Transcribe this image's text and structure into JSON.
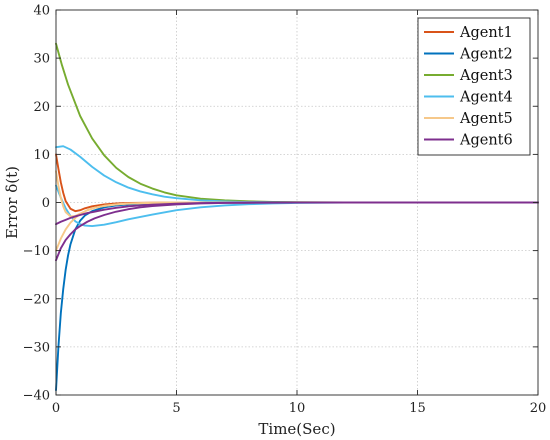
{
  "chart_data": {
    "type": "line",
    "title": "",
    "xlabel": "Time(Sec)",
    "ylabel": "Error δ(t)",
    "xlim": [
      0,
      20
    ],
    "ylim": [
      -40,
      40
    ],
    "xticks": [
      0,
      5,
      10,
      15,
      20
    ],
    "yticks": [
      -40,
      -30,
      -20,
      -10,
      0,
      10,
      20,
      30,
      40
    ],
    "xtick_labels": [
      "0",
      "5",
      "10",
      "15",
      "20"
    ],
    "ytick_labels": [
      "−40",
      "−30",
      "−20",
      "−10",
      "0",
      "10",
      "20",
      "30",
      "40"
    ],
    "grid": true,
    "legend_position": "top-right",
    "series": [
      {
        "name": "Agent1",
        "color": "#d95319",
        "x": [
          0,
          0.1,
          0.2,
          0.3,
          0.4,
          0.6,
          0.8,
          1.0,
          1.2,
          1.5,
          2.0,
          2.5,
          3.0,
          4.0,
          5.0,
          6.0,
          8.0,
          10.0,
          20.0
        ],
        "y": [
          10,
          7.0,
          4.2,
          2.0,
          0.3,
          -1.3,
          -1.8,
          -1.6,
          -1.2,
          -0.8,
          -0.4,
          -0.2,
          -0.1,
          -0.05,
          0,
          0,
          0,
          0,
          0
        ]
      },
      {
        "name": "Agent2",
        "color": "#0072bd",
        "x": [
          0,
          0.1,
          0.2,
          0.3,
          0.4,
          0.5,
          0.6,
          0.8,
          1.0,
          1.2,
          1.5,
          2.0,
          2.5,
          3.0,
          4.0,
          5.0,
          6.0,
          8.0,
          10.0,
          20.0
        ],
        "y": [
          -39,
          -30,
          -23,
          -18,
          -14,
          -11,
          -8.7,
          -5.6,
          -3.8,
          -2.7,
          -1.8,
          -1.0,
          -0.6,
          -0.4,
          -0.15,
          -0.05,
          0,
          0,
          0,
          0
        ]
      },
      {
        "name": "Agent3",
        "color": "#77ac30",
        "x": [
          0,
          0.25,
          0.5,
          1.0,
          1.5,
          2.0,
          2.5,
          3.0,
          3.5,
          4.0,
          4.5,
          5.0,
          6.0,
          7.0,
          8.0,
          9.0,
          10.0,
          12.0,
          20.0
        ],
        "y": [
          33,
          28.5,
          24.5,
          18.0,
          13.3,
          9.8,
          7.2,
          5.3,
          3.9,
          2.9,
          2.1,
          1.5,
          0.8,
          0.45,
          0.25,
          0.12,
          0.06,
          0.01,
          0
        ]
      },
      {
        "name": "Agent4",
        "color": "#4dbeee",
        "x": [
          0,
          0.2,
          0.4,
          0.6,
          0.8,
          1.0,
          1.2,
          1.5,
          2.0,
          2.5,
          3.0,
          4.0,
          5.0,
          6.0,
          7.0,
          8.0,
          9.0,
          10.0,
          12.0,
          20.0
        ],
        "y": [
          3.5,
          1.0,
          -1.2,
          -2.8,
          -3.9,
          -4.5,
          -4.8,
          -4.9,
          -4.6,
          -4.1,
          -3.5,
          -2.5,
          -1.6,
          -1.0,
          -0.6,
          -0.35,
          -0.2,
          -0.1,
          -0.02,
          0
        ]
      },
      {
        "name": "Agent4",
        "color": "#4dbeee",
        "x": [
          0,
          0.3,
          0.6,
          1.0,
          1.5,
          2.0,
          2.5,
          3.0,
          3.5,
          4.0,
          4.5,
          5.0,
          6.0,
          7.0,
          8.0,
          10.0,
          20.0
        ],
        "y": [
          11.5,
          11.7,
          11.0,
          9.5,
          7.4,
          5.6,
          4.2,
          3.1,
          2.3,
          1.7,
          1.2,
          0.9,
          0.45,
          0.22,
          0.1,
          0.02,
          0
        ]
      },
      {
        "name": "Agent5",
        "color": "#f6c88a",
        "x": [
          0,
          0.2,
          0.4,
          0.6,
          0.8,
          1.0,
          1.3,
          1.6,
          2.0,
          2.5,
          3.0,
          4.0,
          5.0,
          6.0,
          8.0,
          20.0
        ],
        "y": [
          -10,
          -7.5,
          -5.6,
          -4.2,
          -3.2,
          -2.4,
          -1.6,
          -1.1,
          -0.7,
          -0.4,
          -0.25,
          -0.1,
          -0.03,
          0,
          0,
          0
        ]
      },
      {
        "name": "Agent5",
        "color": "#f6c88a",
        "x": [
          0,
          0.1,
          0.2,
          0.3,
          0.4,
          0.6,
          0.8,
          1.0,
          1.3,
          1.6,
          2.0,
          2.5,
          3.0,
          4.0,
          5.0,
          20.0
        ],
        "y": [
          6.5,
          3.5,
          1.0,
          -0.8,
          -2.0,
          -2.9,
          -2.8,
          -2.3,
          -1.6,
          -1.1,
          -0.7,
          -0.4,
          -0.2,
          -0.05,
          0,
          0
        ]
      },
      {
        "name": "Agent6",
        "color": "#7e2f8e",
        "x": [
          0,
          0.2,
          0.4,
          0.6,
          0.8,
          1.0,
          1.3,
          1.6,
          2.0,
          2.5,
          3.0,
          3.5,
          4.0,
          5.0,
          6.0,
          7.0,
          8.0,
          10.0,
          20.0
        ],
        "y": [
          -12,
          -9.5,
          -7.8,
          -6.6,
          -5.6,
          -4.9,
          -4.0,
          -3.3,
          -2.6,
          -1.9,
          -1.4,
          -1.0,
          -0.75,
          -0.4,
          -0.2,
          -0.1,
          -0.05,
          0,
          0
        ]
      },
      {
        "name": "Agent6",
        "color": "#7e2f8e",
        "x": [
          0,
          0.2,
          0.4,
          0.6,
          0.8,
          1.0,
          1.3,
          1.6,
          2.0,
          2.5,
          3.0,
          3.5,
          4.0,
          5.0,
          6.0,
          7.0,
          8.0,
          10.0,
          20.0
        ],
        "y": [
          -4.5,
          -4.0,
          -3.6,
          -3.2,
          -2.9,
          -2.6,
          -2.2,
          -1.9,
          -1.5,
          -1.1,
          -0.8,
          -0.6,
          -0.45,
          -0.25,
          -0.12,
          -0.06,
          -0.03,
          0,
          0
        ]
      }
    ],
    "legend": [
      {
        "name": "Agent1",
        "color": "#d95319"
      },
      {
        "name": "Agent2",
        "color": "#0072bd"
      },
      {
        "name": "Agent3",
        "color": "#77ac30"
      },
      {
        "name": "Agent4",
        "color": "#4dbeee"
      },
      {
        "name": "Agent5",
        "color": "#f6c88a"
      },
      {
        "name": "Agent6",
        "color": "#7e2f8e"
      }
    ]
  }
}
